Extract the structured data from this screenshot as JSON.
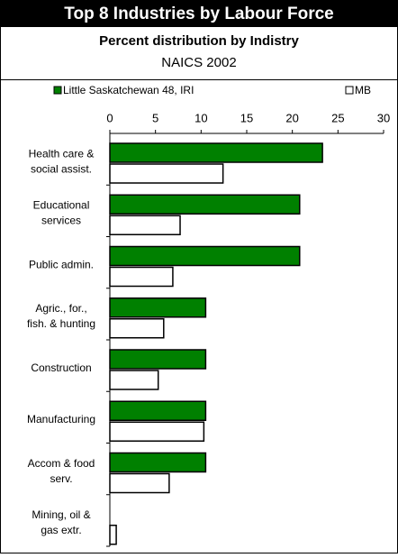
{
  "chart_data": {
    "type": "hbar",
    "title": "Top 8 Industries by Labour Force",
    "subtitle": "Percent distribution by Indistry",
    "note": "NAICS 2002",
    "categories": [
      [
        "Health care &",
        "social assist."
      ],
      [
        "Educational",
        "services"
      ],
      [
        "Public admin."
      ],
      [
        "Agric., for.,",
        "fish. & hunting"
      ],
      [
        "Construction"
      ],
      [
        "Manufacturing"
      ],
      [
        "Accom & food",
        "serv."
      ],
      [
        "Mining, oil &",
        "gas extr."
      ]
    ],
    "series": [
      {
        "name": "Little Saskatchewan 48, IRI",
        "color": "#008000",
        "values": [
          23.3,
          20.8,
          20.8,
          10.5,
          10.5,
          10.5,
          10.5,
          0
        ]
      },
      {
        "name": "MB",
        "color": "#ffffff",
        "values": [
          12.4,
          7.7,
          6.9,
          5.9,
          5.3,
          10.3,
          6.5,
          0.7
        ]
      }
    ],
    "xlim": [
      0,
      30
    ],
    "xticks": [
      0,
      5,
      10,
      15,
      20,
      25,
      30
    ]
  }
}
